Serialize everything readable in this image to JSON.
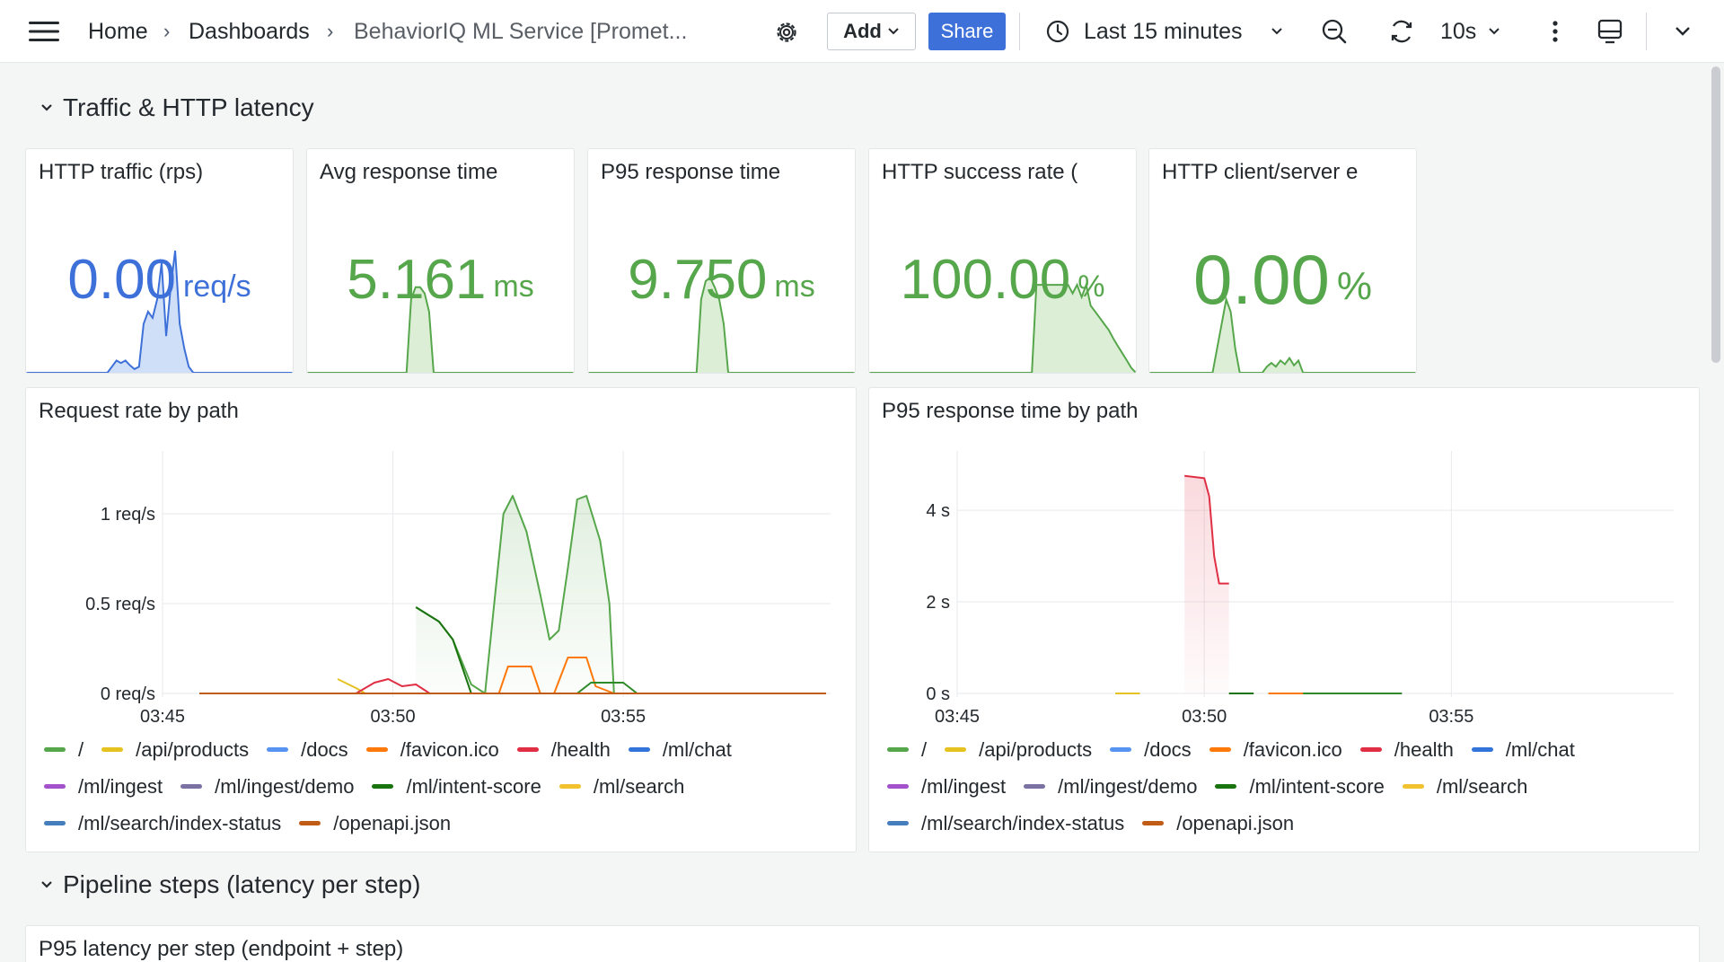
{
  "topbar": {
    "breadcrumbs": [
      "Home",
      "Dashboards",
      "BehaviorIQ ML Service [Promet..."
    ],
    "add_label": "Add",
    "share_label": "Share",
    "time_range": "Last 15 minutes",
    "refresh_interval": "10s"
  },
  "rows": [
    {
      "title": "Traffic & HTTP latency"
    },
    {
      "title": "Pipeline steps (latency per step)"
    }
  ],
  "colors": {
    "blue": "#3d71d9",
    "green": "#56a64b",
    "green_fill": "#dcefd6",
    "blue_fill": "#cfdff7",
    "red": "#e02f44",
    "orange": "#ff780a"
  },
  "stats": [
    {
      "title": "HTTP traffic (rps)",
      "value": "0.00",
      "unit": "req/s",
      "color": "#3d71d9",
      "fill": "#cfdff7",
      "spark": [
        0,
        0,
        0,
        0,
        0,
        0,
        0,
        0,
        0,
        0,
        0,
        0,
        0,
        0,
        0,
        0,
        0,
        0,
        0,
        0.05,
        0.1,
        0.08,
        0.1,
        0.06,
        0.03,
        0.05,
        0.4,
        0.5,
        0.45,
        0.6,
        0.9,
        0.3,
        0.7,
        1.0,
        0.4,
        0.2,
        0.05,
        0,
        0,
        0,
        0,
        0,
        0,
        0,
        0,
        0,
        0,
        0,
        0,
        0,
        0,
        0,
        0,
        0,
        0,
        0,
        0,
        0,
        0,
        0
      ]
    },
    {
      "title": "Avg response time",
      "value": "5.161",
      "unit": "ms",
      "color": "#56a64b",
      "fill": "#dcefd6",
      "spark": [
        0,
        0,
        0,
        0,
        0,
        0,
        0,
        0,
        0,
        0,
        0,
        0,
        0,
        0,
        0,
        0,
        0,
        0,
        0,
        0,
        0,
        0,
        0,
        0.6,
        0.7,
        0.7,
        0.65,
        0.5,
        0,
        0,
        0,
        0,
        0,
        0,
        0,
        0,
        0,
        0,
        0,
        0,
        0,
        0,
        0,
        0,
        0,
        0,
        0,
        0,
        0,
        0,
        0,
        0,
        0,
        0,
        0,
        0,
        0,
        0,
        0,
        0
      ]
    },
    {
      "title": "P95 response time",
      "value": "9.750",
      "unit": "ms",
      "color": "#56a64b",
      "fill": "#dcefd6",
      "spark": [
        0,
        0,
        0,
        0,
        0,
        0,
        0,
        0,
        0,
        0,
        0,
        0,
        0,
        0,
        0,
        0,
        0,
        0,
        0,
        0,
        0,
        0,
        0,
        0,
        0,
        0.6,
        0.75,
        0.78,
        0.7,
        0.6,
        0.4,
        0,
        0,
        0,
        0,
        0,
        0,
        0,
        0,
        0,
        0,
        0,
        0,
        0,
        0,
        0,
        0,
        0,
        0,
        0,
        0,
        0,
        0,
        0,
        0,
        0,
        0,
        0,
        0,
        0
      ]
    },
    {
      "title": "HTTP success rate (",
      "value": "100.00",
      "unit": "%",
      "color": "#56a64b",
      "fill": "#dcefd6",
      "spark": [
        0,
        0,
        0,
        0,
        0,
        0,
        0,
        0,
        0,
        0,
        0,
        0,
        0,
        0,
        0,
        0,
        0,
        0,
        0,
        0,
        0,
        0,
        0,
        0,
        0,
        0,
        0,
        0,
        0,
        0,
        0,
        0,
        0,
        0,
        0,
        0,
        0,
        0.72,
        0.72,
        0.72,
        0.72,
        0.72,
        0.72,
        0.72,
        0.72,
        0.65,
        0.72,
        0.62,
        0.72,
        0.55,
        0.5,
        0.45,
        0.4,
        0.35,
        0.28,
        0.22,
        0.16,
        0.1,
        0.04,
        0
      ]
    },
    {
      "title": "HTTP client/server e",
      "value": "0.00",
      "unit": "%",
      "color": "#56a64b",
      "fill": "#dcefd6",
      "spark": [
        0,
        0,
        0,
        0,
        0,
        0,
        0,
        0,
        0,
        0,
        0,
        0,
        0,
        0,
        0,
        0.2,
        0.4,
        0.6,
        0.5,
        0.2,
        0,
        0,
        0,
        0,
        0,
        0,
        0.05,
        0.08,
        0.05,
        0.1,
        0.07,
        0.12,
        0.06,
        0.1,
        0,
        0,
        0,
        0,
        0,
        0,
        0,
        0,
        0,
        0,
        0,
        0,
        0,
        0,
        0,
        0,
        0,
        0,
        0,
        0,
        0,
        0,
        0,
        0,
        0,
        0
      ]
    },
    {
      "title": "",
      "value": "",
      "unit": "",
      "color": "#56a64b",
      "fill": "#dcefd6",
      "spark": []
    }
  ],
  "panels": {
    "request_rate": {
      "title": "Request rate by path"
    },
    "p95_by_path": {
      "title": "P95 response time by path"
    },
    "p95_per_step": {
      "title": "P95 latency per step (endpoint + step)"
    }
  },
  "legend": [
    {
      "label": "/",
      "color": "#56a64b"
    },
    {
      "label": "/api/products",
      "color": "#e6c220"
    },
    {
      "label": "/docs",
      "color": "#5794f2"
    },
    {
      "label": "/favicon.ico",
      "color": "#ff780a"
    },
    {
      "label": "/health",
      "color": "#e02f44"
    },
    {
      "label": "/ml/chat",
      "color": "#3274d9"
    },
    {
      "label": "/ml/ingest",
      "color": "#a352cc"
    },
    {
      "label": "/ml/ingest/demo",
      "color": "#7b72a3"
    },
    {
      "label": "/ml/intent-score",
      "color": "#19730e"
    },
    {
      "label": "/ml/search",
      "color": "#f2c12e"
    },
    {
      "label": "/ml/search/index-status",
      "color": "#447ebc"
    },
    {
      "label": "/openapi.json",
      "color": "#c15c17"
    }
  ],
  "chart_data": [
    {
      "type": "line",
      "title": "Request rate by path",
      "x_ticks": [
        "03:45",
        "03:50",
        "03:55"
      ],
      "y_ticks": [
        "0 req/s",
        "0.5 req/s",
        "1 req/s"
      ],
      "ylim": [
        0,
        1.3
      ],
      "x_minutes_range": [
        45,
        59.5
      ],
      "series": [
        {
          "name": "/",
          "color": "#56a64b",
          "fill": true,
          "points": [
            [
              50.5,
              0.48
            ],
            [
              51,
              0.4
            ],
            [
              51.3,
              0.3
            ],
            [
              51.7,
              0.05
            ],
            [
              52,
              0
            ],
            [
              52.2,
              0.5
            ],
            [
              52.4,
              1.0
            ],
            [
              52.6,
              1.1
            ],
            [
              52.9,
              0.9
            ],
            [
              53.2,
              0.55
            ],
            [
              53.4,
              0.3
            ],
            [
              53.6,
              0.35
            ],
            [
              53.8,
              0.7
            ],
            [
              54.0,
              1.08
            ],
            [
              54.2,
              1.1
            ],
            [
              54.5,
              0.85
            ],
            [
              54.7,
              0.5
            ],
            [
              54.8,
              0
            ],
            [
              55,
              0
            ]
          ]
        },
        {
          "name": "/api/products",
          "color": "#e6c220",
          "points": [
            [
              48.8,
              0.08
            ],
            [
              49.2,
              0.03
            ],
            [
              49.4,
              0
            ]
          ]
        },
        {
          "name": "/health",
          "color": "#e02f44",
          "points": [
            [
              45.8,
              0
            ],
            [
              49.2,
              0
            ],
            [
              49.6,
              0.06
            ],
            [
              49.9,
              0.08
            ],
            [
              50.2,
              0.04
            ],
            [
              50.5,
              0.05
            ],
            [
              50.8,
              0
            ],
            [
              59.4,
              0
            ]
          ]
        },
        {
          "name": "/favicon.ico",
          "color": "#ff780a",
          "points": [
            [
              51.7,
              0
            ],
            [
              52.3,
              0
            ],
            [
              52.5,
              0.15
            ],
            [
              53.0,
              0.15
            ],
            [
              53.2,
              0
            ],
            [
              53.5,
              0
            ],
            [
              53.8,
              0.2
            ],
            [
              54.2,
              0.2
            ],
            [
              54.4,
              0.04
            ],
            [
              54.8,
              0
            ],
            [
              55.5,
              0
            ]
          ]
        },
        {
          "name": "/ml/intent-score",
          "color": "#19730e",
          "points": [
            [
              50.5,
              0.48
            ],
            [
              51,
              0.4
            ],
            [
              51.3,
              0.3
            ],
            [
              51.7,
              0
            ]
          ]
        },
        {
          "name": "/ml/search",
          "color": "#2f8a2a",
          "points": [
            [
              53.4,
              0
            ],
            [
              54.0,
              0
            ],
            [
              54.3,
              0.06
            ],
            [
              55.0,
              0.06
            ],
            [
              55.3,
              0
            ]
          ]
        },
        {
          "name": "/openapi.json",
          "color": "#c15c17",
          "points": [
            [
              45.8,
              0
            ],
            [
              59.4,
              0
            ]
          ]
        }
      ]
    },
    {
      "type": "line",
      "title": "P95 response time by path",
      "x_ticks": [
        "03:45",
        "03:50",
        "03:55"
      ],
      "y_ticks": [
        "0 s",
        "2 s",
        "4 s"
      ],
      "ylim": [
        0,
        5.1
      ],
      "x_minutes_range": [
        45,
        59.5
      ],
      "series": [
        {
          "name": "/health",
          "color": "#e02f44",
          "fill": true,
          "points": [
            [
              49.6,
              4.75
            ],
            [
              50.0,
              4.7
            ],
            [
              50.1,
              4.3
            ],
            [
              50.2,
              3.0
            ],
            [
              50.3,
              2.4
            ],
            [
              50.5,
              2.4
            ]
          ]
        },
        {
          "name": "/api/products",
          "color": "#e6c220",
          "points": [
            [
              48.2,
              0
            ],
            [
              48.7,
              0
            ]
          ]
        },
        {
          "name": "/ml/intent-score",
          "color": "#19730e",
          "points": [
            [
              50.5,
              0
            ],
            [
              51.0,
              0
            ]
          ]
        },
        {
          "name": "/ml/search",
          "color": "#2f8a2a",
          "points": [
            [
              51.3,
              0
            ],
            [
              54.0,
              0
            ]
          ]
        },
        {
          "name": "/favicon.ico",
          "color": "#ff780a",
          "points": [
            [
              51.3,
              0
            ],
            [
              52.0,
              0
            ]
          ]
        }
      ]
    }
  ]
}
